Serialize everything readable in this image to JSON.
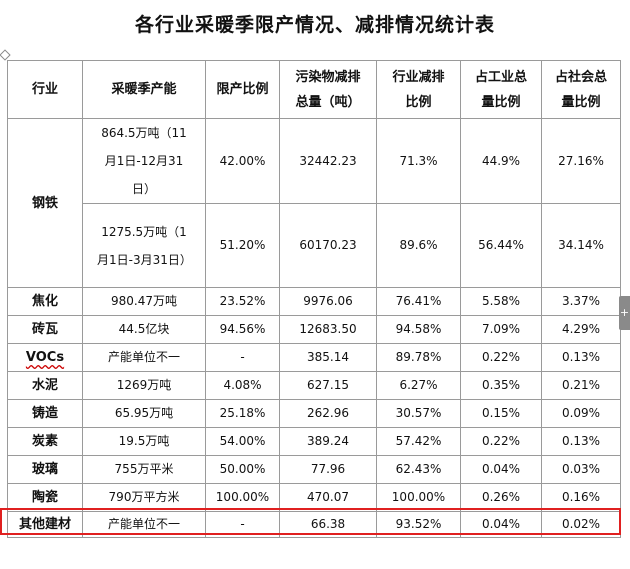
{
  "title": "各行业采暖季限产情况、减排情况统计表",
  "headers": [
    "行业",
    "采暖季产能",
    "限产比例",
    "污染物减排总量（吨）",
    "行业减排比例",
    "占工业总量比例",
    "占社会总量比例"
  ],
  "steel": {
    "industry": "钢铁",
    "rows": [
      [
        "864.5万吨（11月1日-12月31日）",
        "42.00%",
        "32442.23",
        "71.3%",
        "44.9%",
        "27.16%"
      ],
      [
        "1275.5万吨（1月1日-3月31日）",
        "51.20%",
        "60170.23",
        "89.6%",
        "56.44%",
        "34.14%"
      ]
    ]
  },
  "rows": [
    [
      "焦化",
      "980.47万吨",
      "23.52%",
      "9976.06",
      "76.41%",
      "5.58%",
      "3.37%"
    ],
    [
      "砖瓦",
      "44.5亿块",
      "94.56%",
      "12683.50",
      "94.58%",
      "7.09%",
      "4.29%"
    ],
    [
      "VOCs",
      "产能单位不一",
      "-",
      "385.14",
      "89.78%",
      "0.22%",
      "0.13%"
    ],
    [
      "水泥",
      "1269万吨",
      "4.08%",
      "627.15",
      "6.27%",
      "0.35%",
      "0.21%"
    ],
    [
      "铸造",
      "65.95万吨",
      "25.18%",
      "262.96",
      "30.57%",
      "0.15%",
      "0.09%"
    ],
    [
      "炭素",
      "19.5万吨",
      "54.00%",
      "389.24",
      "57.42%",
      "0.22%",
      "0.13%"
    ],
    [
      "玻璃",
      "755万平米",
      "50.00%",
      "77.96",
      "62.43%",
      "0.04%",
      "0.03%"
    ],
    [
      "陶瓷",
      "790万平方米",
      "100.00%",
      "470.07",
      "100.00%",
      "0.26%",
      "0.16%"
    ],
    [
      "其他建材",
      "产能单位不一",
      "-",
      "66.38",
      "93.52%",
      "0.04%",
      "0.02%"
    ]
  ],
  "side_tab_glyph": "+",
  "highlight_color": "#e02020"
}
